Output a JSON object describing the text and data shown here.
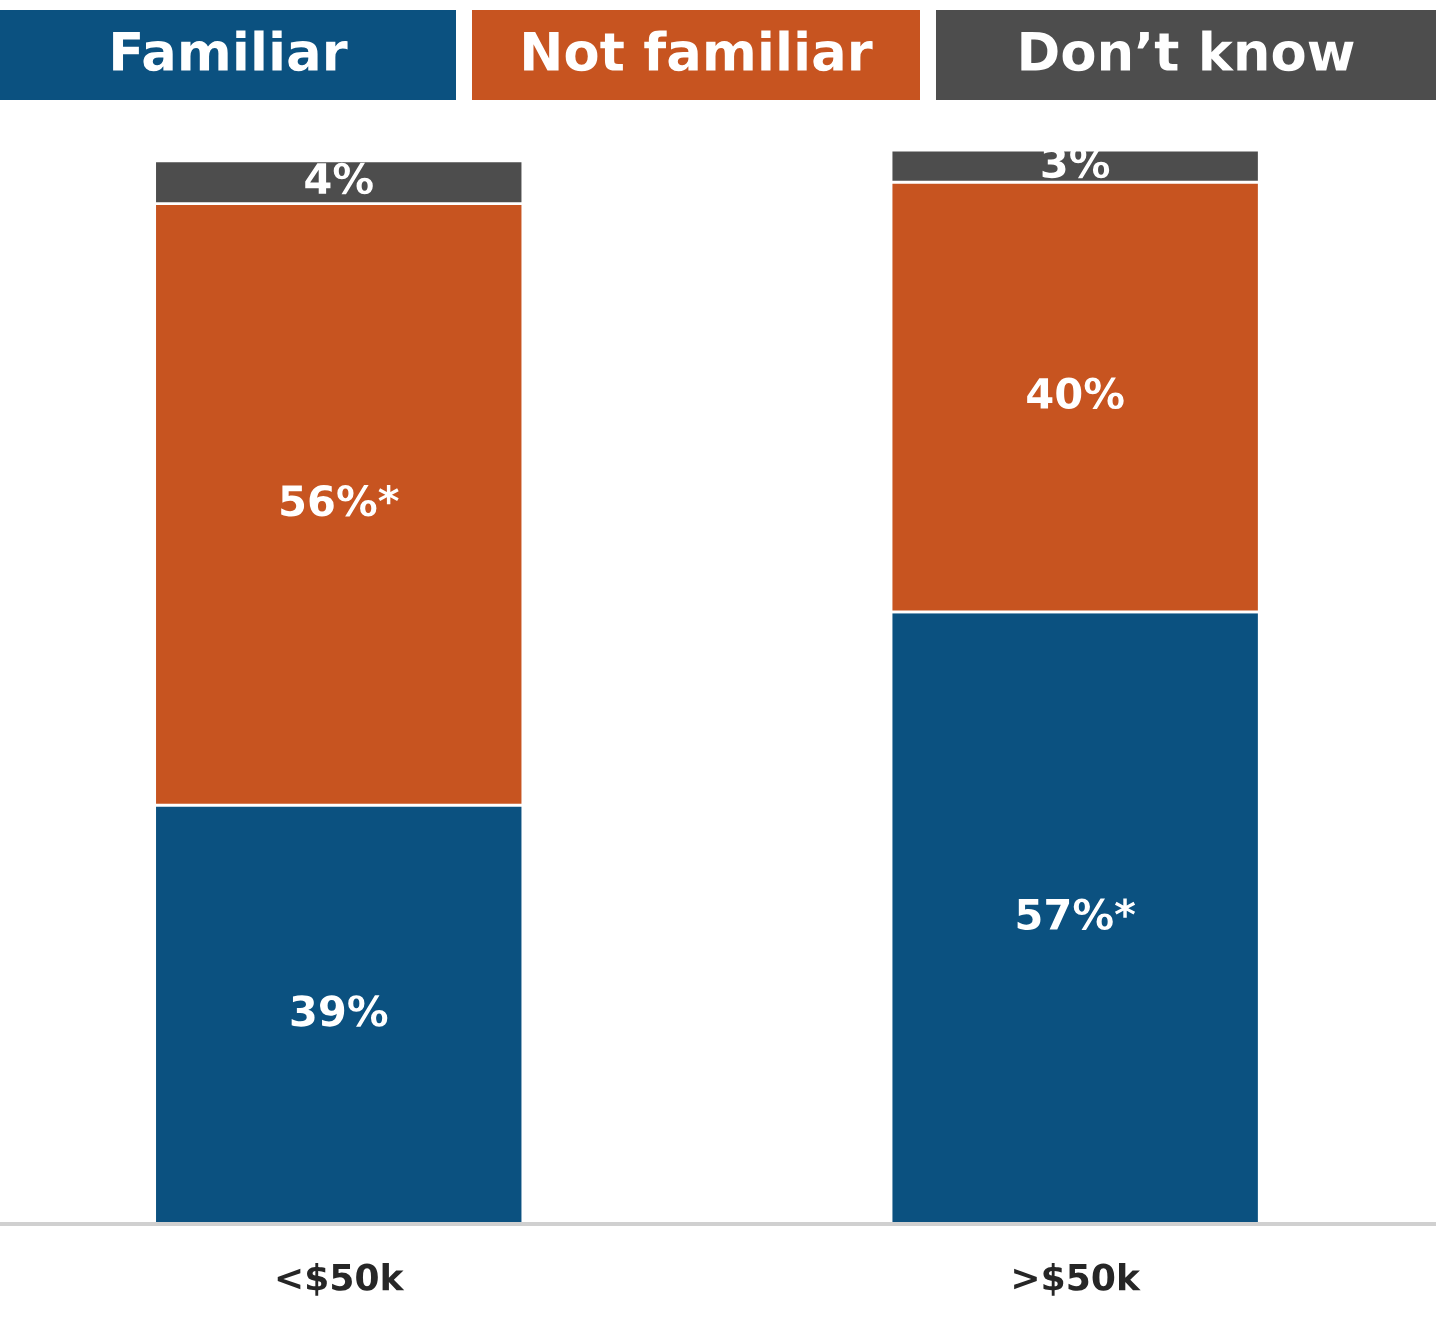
{
  "chart_data": {
    "type": "bar",
    "stacked": true,
    "categories": [
      "<$50k",
      ">$50k"
    ],
    "legend": "top",
    "series": [
      {
        "name": "Familiar",
        "color": "#0b5180",
        "values": [
          39,
          57
        ],
        "value_labels": [
          "39%",
          "57%*"
        ]
      },
      {
        "name": "Not familiar",
        "color": "#c75420",
        "values": [
          56,
          40
        ],
        "value_labels": [
          "56%*",
          "40%"
        ]
      },
      {
        "name": "Don’t know",
        "color": "#4d4d4d",
        "values": [
          4,
          3
        ],
        "value_labels": [
          "4%",
          "3%"
        ]
      }
    ]
  }
}
